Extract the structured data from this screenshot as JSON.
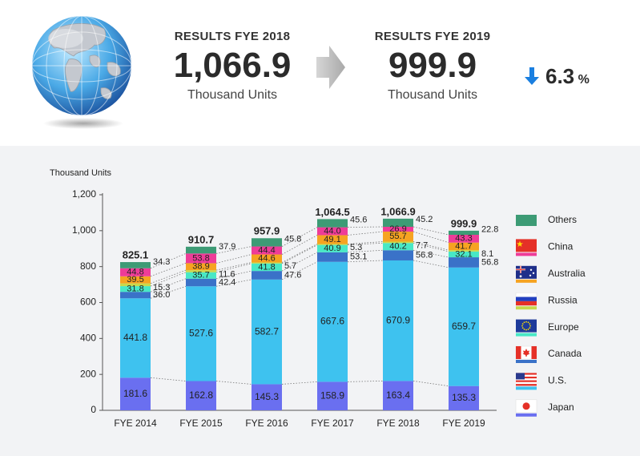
{
  "header": {
    "left": {
      "label": "RESULTS  FYE 2018",
      "value": "1,066.9",
      "unit": "Thousand Units"
    },
    "right": {
      "label": "RESULTS  FYE 2019",
      "value": "999.9",
      "unit": "Thousand Units"
    },
    "change": {
      "value": "6.3",
      "sign": "%"
    }
  },
  "chart_data": {
    "type": "bar",
    "stacked": true,
    "ylabel": "Thousand Units",
    "ylim": [
      0,
      1200
    ],
    "yticks": [
      "0",
      "200",
      "400",
      "600",
      "800",
      "1,000",
      "1,200"
    ],
    "categories": [
      "FYE 2014",
      "FYE 2015",
      "FYE 2016",
      "FYE 2017",
      "FYE 2018",
      "FYE 2019"
    ],
    "totals": [
      "825.1",
      "910.7",
      "957.9",
      "1,064.5",
      "1,066.9",
      "999.9"
    ],
    "series": [
      {
        "name": "Japan",
        "color": "#6a6ff0",
        "values": [
          181.6,
          162.8,
          145.3,
          158.9,
          163.4,
          135.3
        ]
      },
      {
        "name": "U.S.",
        "color": "#3ec2ef",
        "values": [
          441.8,
          527.6,
          582.7,
          667.6,
          670.9,
          659.7
        ]
      },
      {
        "name": "Canada",
        "color": "#3a72c8",
        "values": [
          36.0,
          42.4,
          47.6,
          53.1,
          56.8,
          56.8
        ]
      },
      {
        "name": "Europe",
        "color": "#48e8c6",
        "values": [
          31.8,
          35.7,
          41.8,
          40.9,
          40.2,
          32.1
        ]
      },
      {
        "name": "Russia",
        "color": "#c8d84c",
        "values": [
          15.3,
          11.6,
          5.7,
          5.3,
          7.7,
          8.1
        ]
      },
      {
        "name": "Australia",
        "color": "#f6a321",
        "values": [
          39.5,
          38.9,
          44.6,
          49.1,
          55.7,
          41.7
        ]
      },
      {
        "name": "China",
        "color": "#ee3c98",
        "values": [
          44.8,
          53.8,
          44.4,
          44.0,
          26.9,
          43.3
        ]
      },
      {
        "name": "Others",
        "color": "#3d9b75",
        "values": [
          34.3,
          37.9,
          45.8,
          45.6,
          45.2,
          22.8
        ]
      }
    ],
    "legend": [
      "Others",
      "China",
      "Australia",
      "Russia",
      "Europe",
      "Canada",
      "U.S.",
      "Japan"
    ],
    "legend_placement": "right"
  }
}
